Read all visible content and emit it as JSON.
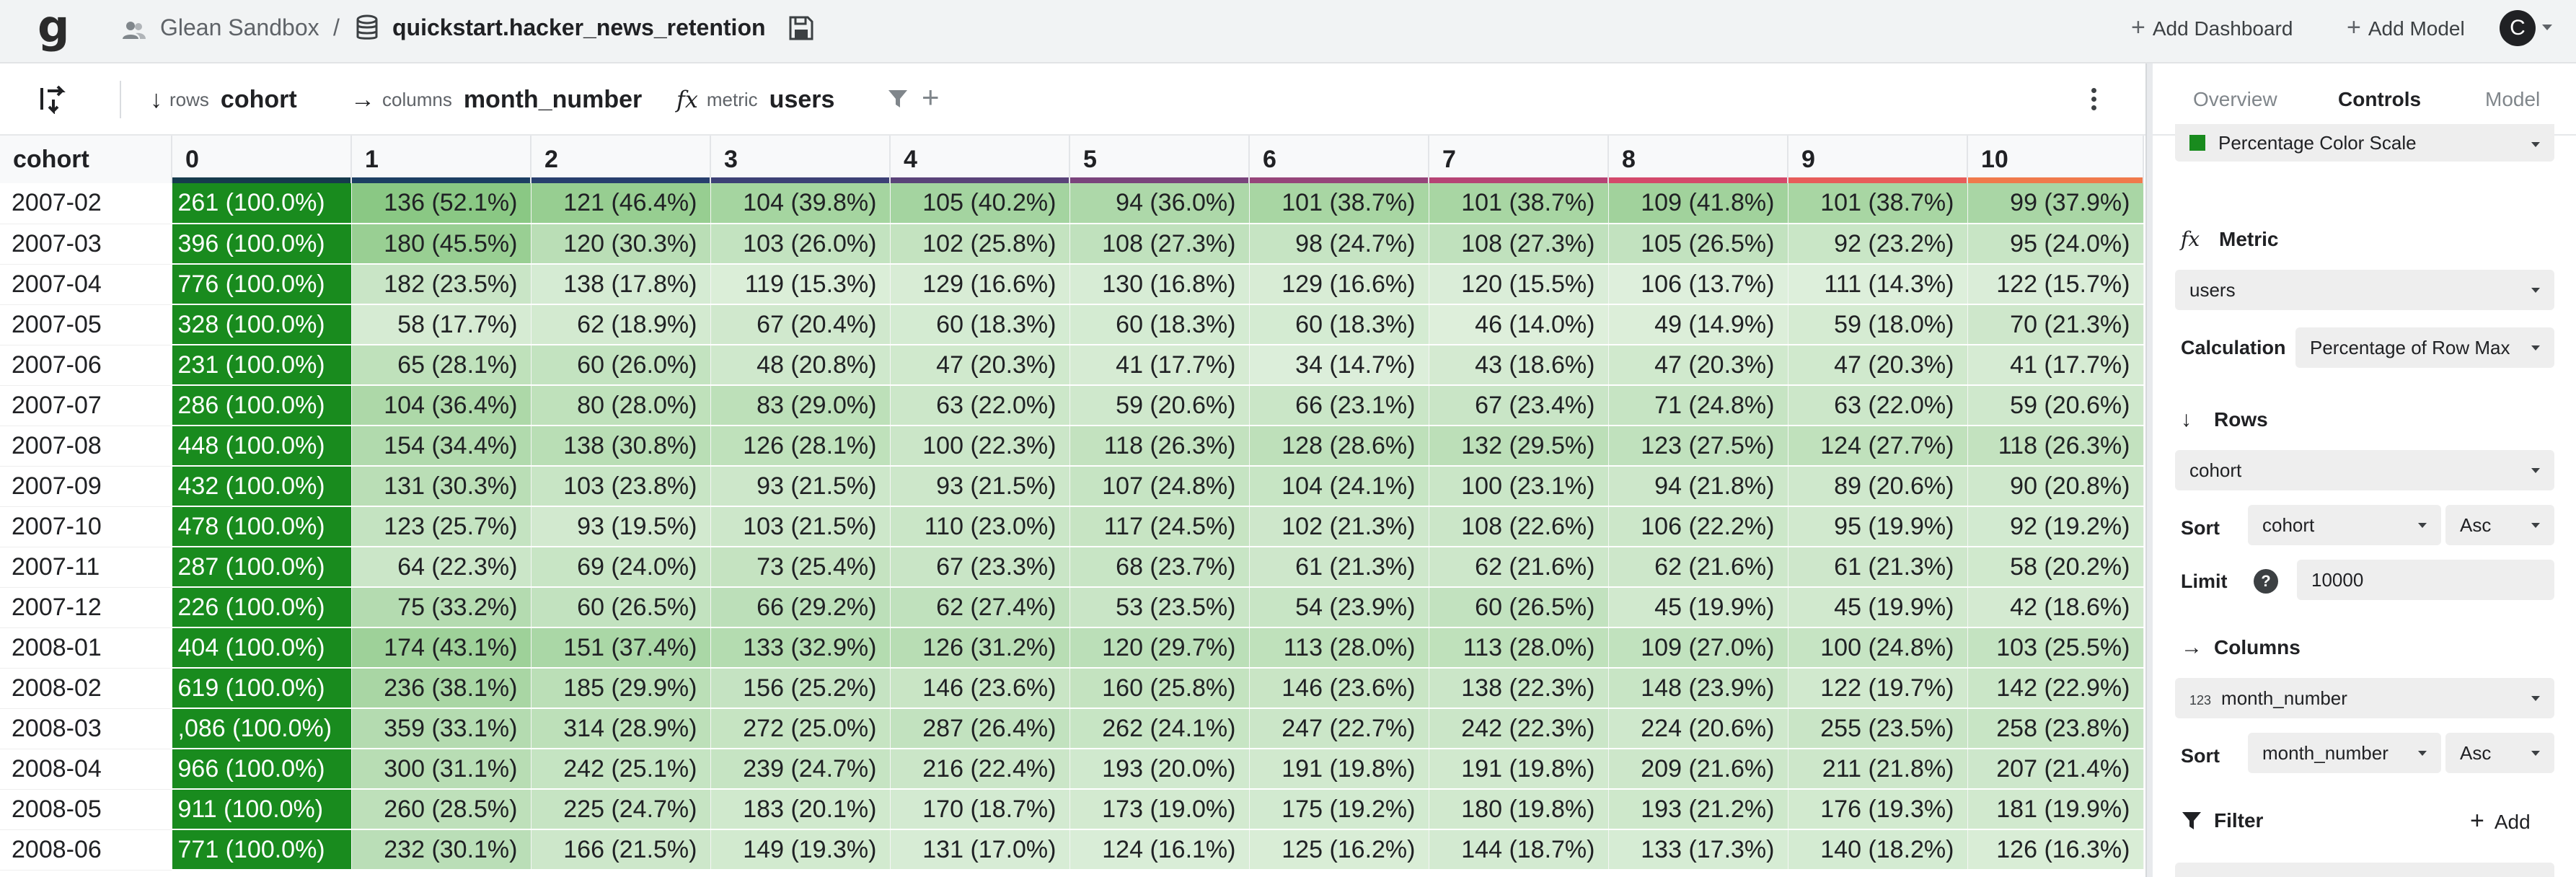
{
  "topbar": {
    "workspace": "Glean Sandbox",
    "separator": "/",
    "model": "quickstart.hacker_news_retention",
    "add_dashboard": "Add Dashboard",
    "add_model": "Add Model",
    "avatar_initial": "C"
  },
  "toolbar": {
    "rows_label": "rows",
    "rows_value": "cohort",
    "columns_label": "columns",
    "columns_value": "month_number",
    "metric_label": "metric",
    "metric_value": "users",
    "fx_glyph": "fx"
  },
  "table": {
    "row_header": "cohort",
    "columns": [
      "0",
      "1",
      "2",
      "3",
      "4",
      "5",
      "6",
      "7",
      "8",
      "9",
      "10"
    ],
    "column_stripe_colors": [
      "#163b4d",
      "#1d3f63",
      "#283f6e",
      "#3d4176",
      "#5a4379",
      "#7a447c",
      "#96457a",
      "#b64475",
      "#d44a6b",
      "#e75d5a",
      "#f07a4c"
    ],
    "rows": [
      {
        "cohort": "2007-02",
        "cells": [
          "261 (100.0%)",
          "136 (52.1%)",
          "121 (46.4%)",
          "104 (39.8%)",
          "105 (40.2%)",
          "94 (36.0%)",
          "101 (38.7%)",
          "101 (38.7%)",
          "109 (41.8%)",
          "101 (38.7%)",
          "99 (37.9%)"
        ],
        "pct": [
          100,
          52.1,
          46.4,
          39.8,
          40.2,
          36.0,
          38.7,
          38.7,
          41.8,
          38.7,
          37.9
        ]
      },
      {
        "cohort": "2007-03",
        "cells": [
          "396 (100.0%)",
          "180 (45.5%)",
          "120 (30.3%)",
          "103 (26.0%)",
          "102 (25.8%)",
          "108 (27.3%)",
          "98 (24.7%)",
          "108 (27.3%)",
          "105 (26.5%)",
          "92 (23.2%)",
          "95 (24.0%)"
        ],
        "pct": [
          100,
          45.5,
          30.3,
          26.0,
          25.8,
          27.3,
          24.7,
          27.3,
          26.5,
          23.2,
          24.0
        ]
      },
      {
        "cohort": "2007-04",
        "cells": [
          "776 (100.0%)",
          "182 (23.5%)",
          "138 (17.8%)",
          "119 (15.3%)",
          "129 (16.6%)",
          "130 (16.8%)",
          "129 (16.6%)",
          "120 (15.5%)",
          "106 (13.7%)",
          "111 (14.3%)",
          "122 (15.7%)"
        ],
        "pct": [
          100,
          23.5,
          17.8,
          15.3,
          16.6,
          16.8,
          16.6,
          15.5,
          13.7,
          14.3,
          15.7
        ]
      },
      {
        "cohort": "2007-05",
        "cells": [
          "328 (100.0%)",
          "58 (17.7%)",
          "62 (18.9%)",
          "67 (20.4%)",
          "60 (18.3%)",
          "60 (18.3%)",
          "60 (18.3%)",
          "46 (14.0%)",
          "49 (14.9%)",
          "59 (18.0%)",
          "70 (21.3%)"
        ],
        "pct": [
          100,
          17.7,
          18.9,
          20.4,
          18.3,
          18.3,
          18.3,
          14.0,
          14.9,
          18.0,
          21.3
        ]
      },
      {
        "cohort": "2007-06",
        "cells": [
          "231 (100.0%)",
          "65 (28.1%)",
          "60 (26.0%)",
          "48 (20.8%)",
          "47 (20.3%)",
          "41 (17.7%)",
          "34 (14.7%)",
          "43 (18.6%)",
          "47 (20.3%)",
          "47 (20.3%)",
          "41 (17.7%)"
        ],
        "pct": [
          100,
          28.1,
          26.0,
          20.8,
          20.3,
          17.7,
          14.7,
          18.6,
          20.3,
          20.3,
          17.7
        ]
      },
      {
        "cohort": "2007-07",
        "cells": [
          "286 (100.0%)",
          "104 (36.4%)",
          "80 (28.0%)",
          "83 (29.0%)",
          "63 (22.0%)",
          "59 (20.6%)",
          "66 (23.1%)",
          "67 (23.4%)",
          "71 (24.8%)",
          "63 (22.0%)",
          "59 (20.6%)"
        ],
        "pct": [
          100,
          36.4,
          28.0,
          29.0,
          22.0,
          20.6,
          23.1,
          23.4,
          24.8,
          22.0,
          20.6
        ]
      },
      {
        "cohort": "2007-08",
        "cells": [
          "448 (100.0%)",
          "154 (34.4%)",
          "138 (30.8%)",
          "126 (28.1%)",
          "100 (22.3%)",
          "118 (26.3%)",
          "128 (28.6%)",
          "132 (29.5%)",
          "123 (27.5%)",
          "124 (27.7%)",
          "118 (26.3%)"
        ],
        "pct": [
          100,
          34.4,
          30.8,
          28.1,
          22.3,
          26.3,
          28.6,
          29.5,
          27.5,
          27.7,
          26.3
        ]
      },
      {
        "cohort": "2007-09",
        "cells": [
          "432 (100.0%)",
          "131 (30.3%)",
          "103 (23.8%)",
          "93 (21.5%)",
          "93 (21.5%)",
          "107 (24.8%)",
          "104 (24.1%)",
          "100 (23.1%)",
          "94 (21.8%)",
          "89 (20.6%)",
          "90 (20.8%)"
        ],
        "pct": [
          100,
          30.3,
          23.8,
          21.5,
          21.5,
          24.8,
          24.1,
          23.1,
          21.8,
          20.6,
          20.8
        ]
      },
      {
        "cohort": "2007-10",
        "cells": [
          "478 (100.0%)",
          "123 (25.7%)",
          "93 (19.5%)",
          "103 (21.5%)",
          "110 (23.0%)",
          "117 (24.5%)",
          "102 (21.3%)",
          "108 (22.6%)",
          "106 (22.2%)",
          "95 (19.9%)",
          "92 (19.2%)"
        ],
        "pct": [
          100,
          25.7,
          19.5,
          21.5,
          23.0,
          24.5,
          21.3,
          22.6,
          22.2,
          19.9,
          19.2
        ]
      },
      {
        "cohort": "2007-11",
        "cells": [
          "287 (100.0%)",
          "64 (22.3%)",
          "69 (24.0%)",
          "73 (25.4%)",
          "67 (23.3%)",
          "68 (23.7%)",
          "61 (21.3%)",
          "62 (21.6%)",
          "62 (21.6%)",
          "61 (21.3%)",
          "58 (20.2%)"
        ],
        "pct": [
          100,
          22.3,
          24.0,
          25.4,
          23.3,
          23.7,
          21.3,
          21.6,
          21.6,
          21.3,
          20.2
        ]
      },
      {
        "cohort": "2007-12",
        "cells": [
          "226 (100.0%)",
          "75 (33.2%)",
          "60 (26.5%)",
          "66 (29.2%)",
          "62 (27.4%)",
          "53 (23.5%)",
          "54 (23.9%)",
          "60 (26.5%)",
          "45 (19.9%)",
          "45 (19.9%)",
          "42 (18.6%)"
        ],
        "pct": [
          100,
          33.2,
          26.5,
          29.2,
          27.4,
          23.5,
          23.9,
          26.5,
          19.9,
          19.9,
          18.6
        ]
      },
      {
        "cohort": "2008-01",
        "cells": [
          "404 (100.0%)",
          "174 (43.1%)",
          "151 (37.4%)",
          "133 (32.9%)",
          "126 (31.2%)",
          "120 (29.7%)",
          "113 (28.0%)",
          "113 (28.0%)",
          "109 (27.0%)",
          "100 (24.8%)",
          "103 (25.5%)"
        ],
        "pct": [
          100,
          43.1,
          37.4,
          32.9,
          31.2,
          29.7,
          28.0,
          28.0,
          27.0,
          24.8,
          25.5
        ]
      },
      {
        "cohort": "2008-02",
        "cells": [
          "619 (100.0%)",
          "236 (38.1%)",
          "185 (29.9%)",
          "156 (25.2%)",
          "146 (23.6%)",
          "160 (25.8%)",
          "146 (23.6%)",
          "138 (22.3%)",
          "148 (23.9%)",
          "122 (19.7%)",
          "142 (22.9%)"
        ],
        "pct": [
          100,
          38.1,
          29.9,
          25.2,
          23.6,
          25.8,
          23.6,
          22.3,
          23.9,
          19.7,
          22.9
        ]
      },
      {
        "cohort": "2008-03",
        "cells": [
          ",086 (100.0%)",
          "359 (33.1%)",
          "314 (28.9%)",
          "272 (25.0%)",
          "287 (26.4%)",
          "262 (24.1%)",
          "247 (22.7%)",
          "242 (22.3%)",
          "224 (20.6%)",
          "255 (23.5%)",
          "258 (23.8%)"
        ],
        "pct": [
          100,
          33.1,
          28.9,
          25.0,
          26.4,
          24.1,
          22.7,
          22.3,
          20.6,
          23.5,
          23.8
        ]
      },
      {
        "cohort": "2008-04",
        "cells": [
          "966 (100.0%)",
          "300 (31.1%)",
          "242 (25.1%)",
          "239 (24.7%)",
          "216 (22.4%)",
          "193 (20.0%)",
          "191 (19.8%)",
          "191 (19.8%)",
          "209 (21.6%)",
          "211 (21.8%)",
          "207 (21.4%)"
        ],
        "pct": [
          100,
          31.1,
          25.1,
          24.7,
          22.4,
          20.0,
          19.8,
          19.8,
          21.6,
          21.8,
          21.4
        ]
      },
      {
        "cohort": "2008-05",
        "cells": [
          "911 (100.0%)",
          "260 (28.5%)",
          "225 (24.7%)",
          "183 (20.1%)",
          "170 (18.7%)",
          "173 (19.0%)",
          "175 (19.2%)",
          "180 (19.8%)",
          "193 (21.2%)",
          "176 (19.3%)",
          "181 (19.9%)"
        ],
        "pct": [
          100,
          28.5,
          24.7,
          20.1,
          18.7,
          19.0,
          19.2,
          19.8,
          21.2,
          19.3,
          19.9
        ]
      },
      {
        "cohort": "2008-06",
        "cells": [
          "771 (100.0%)",
          "232 (30.1%)",
          "166 (21.5%)",
          "149 (19.3%)",
          "131 (17.0%)",
          "124 (16.1%)",
          "125 (16.2%)",
          "144 (18.7%)",
          "133 (17.3%)",
          "140 (18.2%)",
          "126 (16.3%)"
        ],
        "pct": [
          100,
          30.1,
          21.5,
          19.3,
          17.0,
          16.1,
          16.2,
          18.7,
          17.3,
          18.2,
          16.3
        ]
      }
    ]
  },
  "panel": {
    "tabs": [
      "Overview",
      "Controls",
      "Model"
    ],
    "active_tab": "Controls",
    "color_scale": "Percentage Color Scale",
    "color_scale_swatch": "#198b1e",
    "metric_section": "Metric",
    "metric_fx": "fx",
    "metric_value": "users",
    "calculation_label": "Calculation",
    "calculation_value": "Percentage of Row Max",
    "rows_section": "Rows",
    "rows_value": "cohort",
    "rows_sort_label": "Sort",
    "rows_sort_field": "cohort",
    "rows_sort_dir": "Asc",
    "limit_label": "Limit",
    "limit_help": "?",
    "limit_value": "10000",
    "columns_section": "Columns",
    "columns_type_glyph": "123",
    "columns_value": "month_number",
    "columns_sort_label": "Sort",
    "columns_sort_field": "month_number",
    "columns_sort_dir": "Asc",
    "filter_section": "Filter",
    "filter_add": "Add"
  }
}
